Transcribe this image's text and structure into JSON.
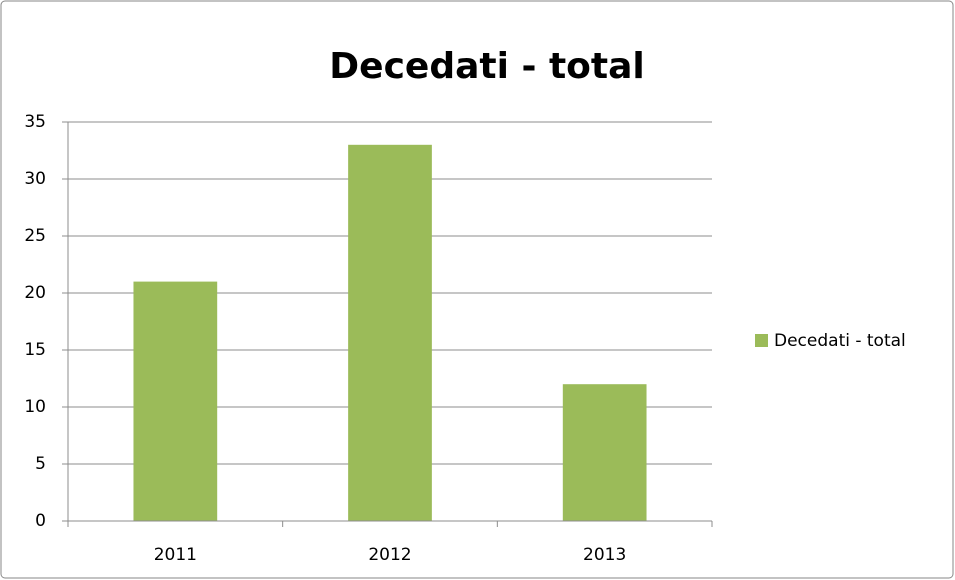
{
  "chart_data": {
    "type": "bar",
    "title": "Decedati - total",
    "categories": [
      "2011",
      "2012",
      "2013"
    ],
    "series": [
      {
        "name": "Decedati - total",
        "color": "#9bbb59",
        "values": [
          21,
          33,
          12
        ]
      }
    ],
    "ylim": [
      0,
      35
    ],
    "yticks": [
      0,
      5,
      10,
      15,
      20,
      25,
      30,
      35
    ],
    "grid": true,
    "legend": "right"
  }
}
